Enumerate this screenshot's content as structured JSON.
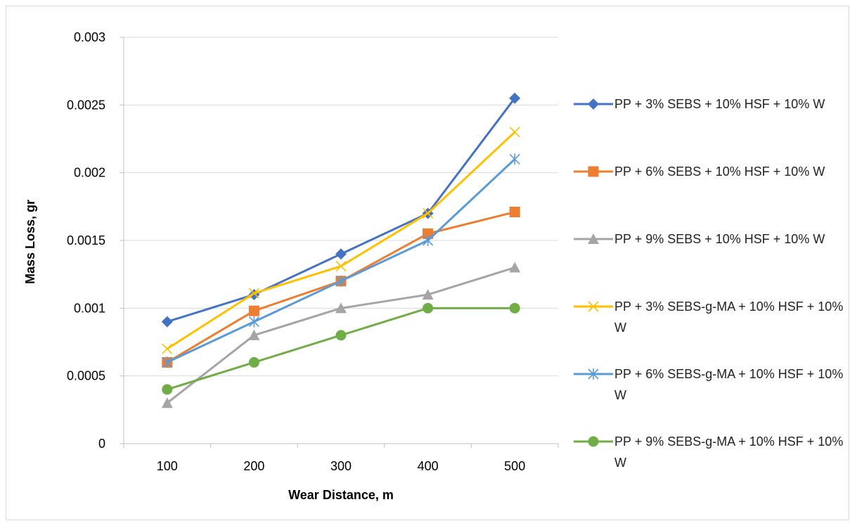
{
  "chart_data": {
    "type": "line",
    "title": "",
    "xlabel": "Wear Distance, m",
    "ylabel": "Mass Loss, gr",
    "categories": [
      "100",
      "200",
      "300",
      "400",
      "500"
    ],
    "ylim": [
      0,
      0.003
    ],
    "yticks": [
      "0",
      "0.0005",
      "0.001",
      "0.0015",
      "0.002",
      "0.0025",
      "0.003"
    ],
    "grid": true,
    "legend_position": "right",
    "series": [
      {
        "name": "PP + 3% SEBS + 10% HSF + 10% W",
        "color": "#4472C4",
        "marker": "diamond",
        "values": [
          0.0009,
          0.0011,
          0.0014,
          0.0017,
          0.00255
        ]
      },
      {
        "name": "PP + 6% SEBS + 10% HSF + 10% W",
        "color": "#ED7D31",
        "marker": "square",
        "values": [
          0.0006,
          0.00098,
          0.0012,
          0.00155,
          0.00171
        ]
      },
      {
        "name": "PP + 9% SEBS + 10% HSF + 10% W",
        "color": "#A5A5A5",
        "marker": "triangle",
        "values": [
          0.0003,
          0.0008,
          0.001,
          0.0011,
          0.0013
        ]
      },
      {
        "name": "PP + 3% SEBS-g-MA + 10% HSF + 10% W",
        "color": "#FFC000",
        "marker": "x",
        "values": [
          0.0007,
          0.00111,
          0.00131,
          0.0017,
          0.0023
        ]
      },
      {
        "name": "PP + 6% SEBS-g-MA + 10% HSF + 10% W",
        "color": "#5B9BD5",
        "marker": "star",
        "values": [
          0.0006,
          0.0009,
          0.0012,
          0.0015,
          0.0021
        ]
      },
      {
        "name": "PP + 9% SEBS-g-MA + 10% HSF + 10% W",
        "color": "#70AD47",
        "marker": "circle",
        "values": [
          0.0004,
          0.0006,
          0.0008,
          0.001,
          0.001
        ]
      }
    ]
  }
}
